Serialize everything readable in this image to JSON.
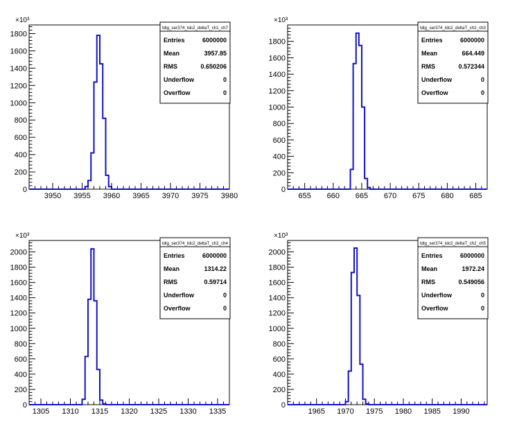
{
  "chart_data": [
    {
      "type": "histogram",
      "name": "tdig_ser374_tdc2_deltaT_ch1_ch7",
      "exponent_label": "×10³",
      "xlim": [
        3946,
        3980
      ],
      "ylim": [
        0,
        1900
      ],
      "xticks": [
        3950,
        3955,
        3960,
        3965,
        3970,
        3975,
        3980
      ],
      "yticks": [
        0,
        200,
        400,
        600,
        800,
        1000,
        1200,
        1400,
        1600,
        1800
      ],
      "bin_width": 0.5,
      "bins": [
        {
          "x": 3955.5,
          "y": 30
        },
        {
          "x": 3956.0,
          "y": 100
        },
        {
          "x": 3956.5,
          "y": 420
        },
        {
          "x": 3957.0,
          "y": 1240
        },
        {
          "x": 3957.5,
          "y": 1780
        },
        {
          "x": 3958.0,
          "y": 1450
        },
        {
          "x": 3958.5,
          "y": 820
        },
        {
          "x": 3959.0,
          "y": 160
        },
        {
          "x": 3959.5,
          "y": 30
        }
      ],
      "stats": [
        {
          "label": "Entries",
          "value": "6000000"
        },
        {
          "label": "Mean",
          "value": "3957.85"
        },
        {
          "label": "RMS",
          "value": "0.650206"
        },
        {
          "label": "Underflow",
          "value": "0"
        },
        {
          "label": "Overflow",
          "value": "0"
        }
      ]
    },
    {
      "type": "histogram",
      "name": "tdig_ser374_tdc2_deltaT_ch2_ch3",
      "exponent_label": "×10³",
      "xlim": [
        652,
        687
      ],
      "ylim": [
        0,
        2000
      ],
      "xticks": [
        655,
        660,
        665,
        670,
        675,
        680,
        685
      ],
      "yticks": [
        0,
        200,
        400,
        600,
        800,
        1000,
        1200,
        1400,
        1600,
        1800
      ],
      "bin_width": 0.5,
      "bins": [
        {
          "x": 663.0,
          "y": 240
        },
        {
          "x": 663.5,
          "y": 1530
        },
        {
          "x": 664.0,
          "y": 1900
        },
        {
          "x": 664.5,
          "y": 1750
        },
        {
          "x": 665.0,
          "y": 1000
        },
        {
          "x": 665.5,
          "y": 130
        },
        {
          "x": 666.0,
          "y": 20
        }
      ],
      "stats": [
        {
          "label": "Entries",
          "value": "6000000"
        },
        {
          "label": "Mean",
          "value": "664.449"
        },
        {
          "label": "RMS",
          "value": "0.572344"
        },
        {
          "label": "Underflow",
          "value": "0"
        },
        {
          "label": "Overflow",
          "value": "0"
        }
      ]
    },
    {
      "type": "histogram",
      "name": "tdig_ser374_tdc2_deltaT_ch2_ch4",
      "exponent_label": "×10³",
      "xlim": [
        1303,
        1337
      ],
      "ylim": [
        0,
        2150
      ],
      "xticks": [
        1305,
        1310,
        1315,
        1320,
        1325,
        1330,
        1335
      ],
      "yticks": [
        0,
        200,
        400,
        600,
        800,
        1000,
        1200,
        1400,
        1600,
        1800,
        2000
      ],
      "bin_width": 0.5,
      "bins": [
        {
          "x": 1312.0,
          "y": 70
        },
        {
          "x": 1312.5,
          "y": 630
        },
        {
          "x": 1313.0,
          "y": 1380
        },
        {
          "x": 1313.5,
          "y": 2040
        },
        {
          "x": 1314.0,
          "y": 1360
        },
        {
          "x": 1314.5,
          "y": 460
        },
        {
          "x": 1315.0,
          "y": 60
        },
        {
          "x": 1315.5,
          "y": 10
        }
      ],
      "stats": [
        {
          "label": "Entries",
          "value": "6000000"
        },
        {
          "label": "Mean",
          "value": "1314.22"
        },
        {
          "label": "RMS",
          "value": "0.59714"
        },
        {
          "label": "Underflow",
          "value": "0"
        },
        {
          "label": "Overflow",
          "value": "0"
        }
      ]
    },
    {
      "type": "histogram",
      "name": "tdig_ser374_tdc2_deltaT_ch2_ch5",
      "exponent_label": "×10³",
      "xlim": [
        1960,
        1994.5
      ],
      "ylim": [
        0,
        2150
      ],
      "xticks": [
        1965,
        1970,
        1975,
        1980,
        1985,
        1990
      ],
      "yticks": [
        0,
        200,
        400,
        600,
        800,
        1000,
        1200,
        1400,
        1600,
        1800,
        2000
      ],
      "bin_width": 0.5,
      "bins": [
        {
          "x": 1970.0,
          "y": 40
        },
        {
          "x": 1970.5,
          "y": 440
        },
        {
          "x": 1971.0,
          "y": 1730
        },
        {
          "x": 1971.5,
          "y": 2050
        },
        {
          "x": 1972.0,
          "y": 1430
        },
        {
          "x": 1972.5,
          "y": 530
        },
        {
          "x": 1973.0,
          "y": 70
        },
        {
          "x": 1973.5,
          "y": 10
        }
      ],
      "stats": [
        {
          "label": "Entries",
          "value": "6000000"
        },
        {
          "label": "Mean",
          "value": "1972.24"
        },
        {
          "label": "RMS",
          "value": "0.549056"
        },
        {
          "label": "Underflow",
          "value": "0"
        },
        {
          "label": "Overflow",
          "value": "0"
        }
      ]
    }
  ]
}
